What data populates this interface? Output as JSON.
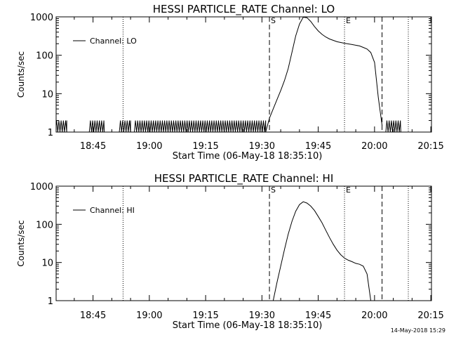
{
  "footer": {
    "timestamp": "14-May-2018 15:29"
  },
  "chart_data": [
    {
      "type": "line",
      "title": "HESSI PARTICLE_RATE Channel: LO",
      "xlabel": "Start Time (06-May-18 18:35:10)",
      "ylabel": "Counts/sec",
      "y_scale": "log",
      "ylim": [
        1,
        1000
      ],
      "xlim": [
        "18:35:10",
        "20:15:10"
      ],
      "x_ticks": [
        "18:45",
        "19:00",
        "19:15",
        "19:30",
        "19:45",
        "20:00",
        "20:15"
      ],
      "y_ticks": [
        "1",
        "10",
        "100",
        "1000"
      ],
      "legend": {
        "placement": "top-left",
        "entries": [
          "Channel: LO"
        ]
      },
      "dotted_lines": [
        "18:53",
        "19:52",
        "20:09"
      ],
      "dashed_lines": [
        {
          "x": "19:32",
          "label": "S"
        },
        {
          "x": "20:02",
          "label": ""
        }
      ],
      "solid_marker": {
        "x": "19:52",
        "label": "E"
      },
      "series": [
        {
          "name": "Channel: LO",
          "noise_segments": [
            [
              "18:35",
              "18:38"
            ],
            [
              "18:44",
              "18:48"
            ],
            [
              "18:52",
              "18:55"
            ],
            [
              "18:56",
              "19:31"
            ],
            [
              "20:03",
              "20:07"
            ]
          ],
          "x": [
            "19:31",
            "19:32",
            "19:33",
            "19:34",
            "19:35",
            "19:36",
            "19:37",
            "19:38",
            "19:39",
            "19:40",
            "19:41",
            "19:42",
            "19:43",
            "19:44",
            "19:45",
            "19:46",
            "19:47",
            "19:48",
            "19:50",
            "19:52",
            "19:54",
            "19:56",
            "19:57",
            "19:58",
            "19:59",
            "20:00",
            "20:01",
            "20:02"
          ],
          "y": [
            1,
            2.3,
            4,
            7,
            12,
            22,
            45,
            120,
            320,
            650,
            980,
            950,
            760,
            560,
            430,
            350,
            300,
            265,
            225,
            205,
            190,
            175,
            160,
            145,
            118,
            65,
            8,
            1.5
          ]
        }
      ]
    },
    {
      "type": "line",
      "title": "HESSI PARTICLE_RATE Channel: HI",
      "xlabel": "Start Time (06-May-18 18:35:10)",
      "ylabel": "Counts/sec",
      "y_scale": "log",
      "ylim": [
        1,
        1000
      ],
      "xlim": [
        "18:35:10",
        "20:15:10"
      ],
      "x_ticks": [
        "18:45",
        "19:00",
        "19:15",
        "19:30",
        "19:45",
        "20:00",
        "20:15"
      ],
      "y_ticks": [
        "1",
        "10",
        "100",
        "1000"
      ],
      "legend": {
        "placement": "top-left",
        "entries": [
          "Channel: HI"
        ]
      },
      "dotted_lines": [
        "18:53",
        "19:52",
        "20:09"
      ],
      "dashed_lines": [
        {
          "x": "19:32",
          "label": "S"
        },
        {
          "x": "20:02",
          "label": ""
        }
      ],
      "solid_marker": {
        "x": "19:52",
        "label": "E"
      },
      "series": [
        {
          "name": "Channel: HI",
          "noise_segments": [],
          "x": [
            "19:33",
            "19:34",
            "19:35",
            "19:36",
            "19:37",
            "19:38",
            "19:39",
            "19:40",
            "19:41",
            "19:42",
            "19:43",
            "19:44",
            "19:45",
            "19:46",
            "19:47",
            "19:48",
            "19:49",
            "19:50",
            "19:51",
            "19:52",
            "19:53",
            "19:54",
            "19:55",
            "19:56",
            "19:57",
            "19:58",
            "19:59"
          ],
          "y": [
            1,
            3,
            8,
            22,
            55,
            120,
            220,
            330,
            390,
            360,
            300,
            230,
            160,
            110,
            70,
            45,
            30,
            21,
            16,
            13,
            11.5,
            10.5,
            9.5,
            9,
            8,
            5,
            1
          ]
        }
      ]
    }
  ]
}
